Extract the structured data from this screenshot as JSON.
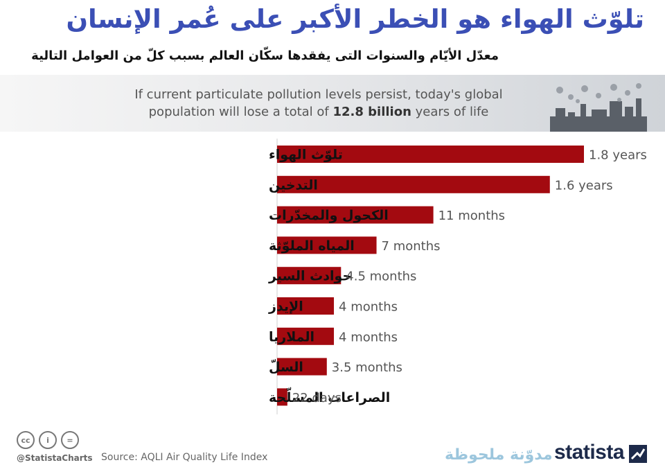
{
  "title": "تلوّث الهواء هو الخطر الأكبر على عُمر الإنسان",
  "subtitle": "معدّل الأيّام والسنوات التى يفقدها سكّان العالم بسبب كلّ من العوامل التالية",
  "banner": {
    "text_before": "If current particulate pollution levels persist, today's global population will lose a total of ",
    "highlight": "12.8 billion",
    "text_after": " years of life"
  },
  "chart_data": {
    "type": "bar",
    "orientation": "horizontal",
    "categories": [
      "تلوّث الهواء",
      "التدخين",
      "الكحول والمخدّرات",
      "المياه الملوّثة",
      "حوادث السير",
      "الإيدز",
      "الملاريا",
      "السلّ",
      "الصراعات المسلّحة"
    ],
    "values_years": [
      1.8,
      1.6,
      0.9167,
      0.5833,
      0.375,
      0.3333,
      0.3333,
      0.2917,
      0.0603
    ],
    "data_labels": [
      "1.8 years",
      "1.6 years",
      "11 months",
      "7 months",
      "4.5 months",
      "4 months",
      "4 months",
      "3.5 months",
      "22 days"
    ],
    "bar_color": "#a30a10",
    "xlim": [
      0,
      1.8
    ]
  },
  "footer": {
    "handle": "@StatistaCharts",
    "source": "Source: AQLI Air Quality Life Index",
    "blog": "مدوّنة ملحوظة",
    "brand": "statista"
  },
  "icons": [
    "cc-icon",
    "attribution-icon",
    "no-derivatives-icon",
    "city-pollution-icon",
    "statista-logo-icon"
  ],
  "colors": {
    "title": "#3b4fb5",
    "bar": "#a30a10",
    "blog": "#9cc6dd",
    "brand": "#1d2a4a"
  }
}
